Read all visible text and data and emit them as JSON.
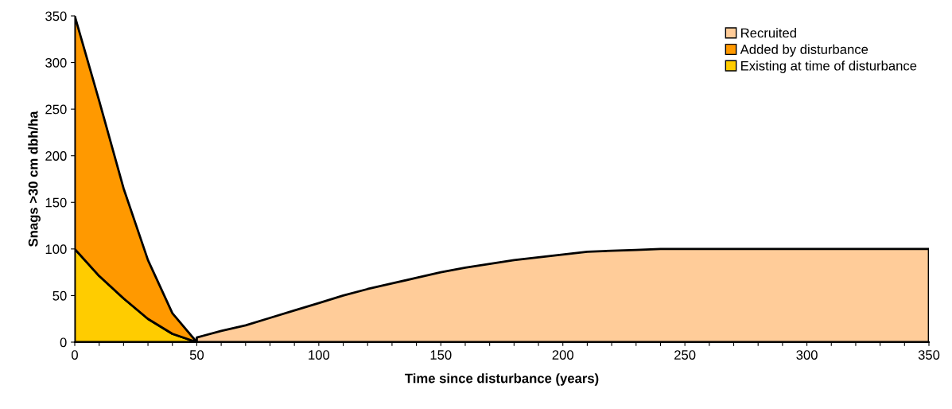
{
  "chart_data": {
    "type": "area",
    "stacked": true,
    "xlabel": "Time since disturbance (years)",
    "ylabel": "Snags >30 cm dbh/ha",
    "x": [
      0,
      10,
      20,
      30,
      40,
      50,
      60,
      70,
      80,
      90,
      100,
      110,
      120,
      130,
      140,
      150,
      160,
      170,
      180,
      190,
      200,
      210,
      220,
      230,
      240,
      250,
      260,
      270,
      280,
      290,
      300,
      310,
      320,
      330,
      340,
      350
    ],
    "series": [
      {
        "name": "Existing at time of disturbance",
        "color": "#ffcc00",
        "values": [
          100,
          71,
          47,
          25,
          9,
          0,
          null,
          null,
          null,
          null,
          null,
          null,
          null,
          null,
          null,
          null,
          null,
          null,
          null,
          null,
          null,
          null,
          null,
          null,
          null,
          null,
          null,
          null,
          null,
          null,
          null,
          null,
          null,
          null,
          null,
          null
        ]
      },
      {
        "name": "Added by disturbance",
        "color": "#ff9900",
        "values": [
          250,
          188,
          118,
          63,
          22,
          0,
          null,
          null,
          null,
          null,
          null,
          null,
          null,
          null,
          null,
          null,
          null,
          null,
          null,
          null,
          null,
          null,
          null,
          null,
          null,
          null,
          null,
          null,
          null,
          null,
          null,
          null,
          null,
          null,
          null,
          null
        ]
      },
      {
        "name": "Recruited",
        "color": "#ffcc99",
        "values": [
          null,
          null,
          null,
          null,
          null,
          5,
          12,
          18,
          26,
          34,
          42,
          50,
          57,
          63,
          69,
          75,
          80,
          84,
          88,
          91,
          94,
          97,
          98,
          99,
          100,
          100,
          100,
          100,
          100,
          100,
          100,
          100,
          100,
          100,
          100,
          100
        ]
      }
    ],
    "xlim": [
      0,
      350
    ],
    "xticks": [
      0,
      {
        "value": 10,
        "label": null
      },
      {
        "value": 20,
        "label": null
      },
      {
        "value": 30,
        "label": null
      },
      {
        "value": 40,
        "label": null
      },
      50,
      {
        "value": 60,
        "label": null
      },
      {
        "value": 70,
        "label": null
      },
      {
        "value": 80,
        "label": null
      },
      {
        "value": 90,
        "label": null
      },
      100,
      {
        "value": 110,
        "label": null
      },
      {
        "value": 120,
        "label": null
      },
      {
        "value": 130,
        "label": null
      },
      {
        "value": 140,
        "label": null
      },
      150,
      {
        "value": 160,
        "label": null
      },
      {
        "value": 170,
        "label": null
      },
      {
        "value": 180,
        "label": null
      },
      {
        "value": 190,
        "label": null
      },
      200,
      {
        "value": 210,
        "label": null
      },
      {
        "value": 220,
        "label": null
      },
      {
        "value": 230,
        "label": null
      },
      {
        "value": 240,
        "label": null
      },
      250,
      {
        "value": 260,
        "label": null
      },
      {
        "value": 270,
        "label": null
      },
      {
        "value": 280,
        "label": null
      },
      {
        "value": 290,
        "label": null
      },
      300,
      {
        "value": 310,
        "label": null
      },
      {
        "value": 320,
        "label": null
      },
      {
        "value": 330,
        "label": null
      },
      {
        "value": 340,
        "label": null
      },
      350
    ],
    "ylim": [
      0,
      350
    ],
    "yticks": [
      0,
      50,
      100,
      150,
      200,
      250,
      300,
      350
    ],
    "grid": false,
    "legend": "top right"
  }
}
